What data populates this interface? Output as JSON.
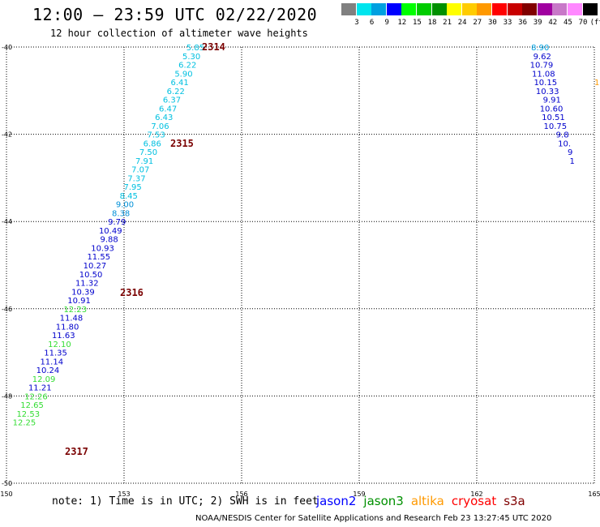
{
  "header": {
    "title": "12:00 – 23:59 UTC 02/22/2020",
    "subtitle": "12 hour collection of altimeter wave heights"
  },
  "legend": {
    "labels": [
      "3",
      "6",
      "9",
      "12",
      "15",
      "18",
      "21",
      "24",
      "27",
      "30",
      "33",
      "36",
      "39",
      "42",
      "45",
      "70",
      "(ft)"
    ],
    "colors": [
      "#808080",
      "#00e5ee",
      "#00a0e0",
      "#0000ff",
      "#00ff00",
      "#00cc00",
      "#009000",
      "#ffff00",
      "#ffcc00",
      "#ff9900",
      "#ff0000",
      "#c80000",
      "#800000",
      "#a000a0",
      "#c878c8",
      "#ff88ff",
      "#000000"
    ]
  },
  "map": {
    "lat_labels": [
      "-40",
      "-42",
      "-44",
      "-46",
      "-48",
      "-50"
    ],
    "lon_labels": [
      "150",
      "153",
      "156",
      "159",
      "162",
      "165"
    ],
    "pass_labels": [
      "2314",
      "2315",
      "2316",
      "2317"
    ],
    "track_main": [
      {
        "lon": 155.05,
        "lat": -40.0,
        "v": "5.85",
        "c": "#00c0e0"
      },
      {
        "lon": 154.95,
        "lat": -40.2,
        "v": "5.30",
        "c": "#00c0e0"
      },
      {
        "lon": 154.85,
        "lat": -40.4,
        "v": "6.22",
        "c": "#00c0e0"
      },
      {
        "lon": 154.75,
        "lat": -40.6,
        "v": "5.90",
        "c": "#00c0e0"
      },
      {
        "lon": 154.65,
        "lat": -40.8,
        "v": "6.41",
        "c": "#00c0e0"
      },
      {
        "lon": 154.55,
        "lat": -41.0,
        "v": "6.22",
        "c": "#00c0e0"
      },
      {
        "lon": 154.45,
        "lat": -41.2,
        "v": "6.37",
        "c": "#00c0e0"
      },
      {
        "lon": 154.35,
        "lat": -41.4,
        "v": "6.47",
        "c": "#00c0e0"
      },
      {
        "lon": 154.25,
        "lat": -41.6,
        "v": "6.43",
        "c": "#00c0e0"
      },
      {
        "lon": 154.15,
        "lat": -41.8,
        "v": "7.06",
        "c": "#00c0e0"
      },
      {
        "lon": 154.05,
        "lat": -42.0,
        "v": "7.53",
        "c": "#00c0e0"
      },
      {
        "lon": 153.95,
        "lat": -42.2,
        "v": "6.86",
        "c": "#00c0e0"
      },
      {
        "lon": 153.85,
        "lat": -42.4,
        "v": "7.50",
        "c": "#00c0e0"
      },
      {
        "lon": 153.75,
        "lat": -42.6,
        "v": "7.91",
        "c": "#00c0e0"
      },
      {
        "lon": 153.65,
        "lat": -42.8,
        "v": "7.07",
        "c": "#00c0e0"
      },
      {
        "lon": 153.55,
        "lat": -43.0,
        "v": "7.37",
        "c": "#00c0e0"
      },
      {
        "lon": 153.45,
        "lat": -43.2,
        "v": "7.95",
        "c": "#00c0e0"
      },
      {
        "lon": 153.35,
        "lat": -43.4,
        "v": "8.45",
        "c": "#00c0e0"
      },
      {
        "lon": 153.25,
        "lat": -43.6,
        "v": "9.00",
        "c": "#0090d8"
      },
      {
        "lon": 153.15,
        "lat": -43.8,
        "v": "8.38",
        "c": "#0090d8"
      },
      {
        "lon": 153.05,
        "lat": -44.0,
        "v": "9.79",
        "c": "#0000cc"
      },
      {
        "lon": 152.95,
        "lat": -44.2,
        "v": "10.49",
        "c": "#0000cc"
      },
      {
        "lon": 152.85,
        "lat": -44.4,
        "v": "9.88",
        "c": "#0000cc"
      },
      {
        "lon": 152.75,
        "lat": -44.6,
        "v": "10.93",
        "c": "#0000cc"
      },
      {
        "lon": 152.65,
        "lat": -44.8,
        "v": "11.55",
        "c": "#0000cc"
      },
      {
        "lon": 152.55,
        "lat": -45.0,
        "v": "10.27",
        "c": "#0000cc"
      },
      {
        "lon": 152.45,
        "lat": -45.2,
        "v": "10.50",
        "c": "#0000cc"
      },
      {
        "lon": 152.35,
        "lat": -45.4,
        "v": "11.32",
        "c": "#0000cc"
      },
      {
        "lon": 152.25,
        "lat": -45.6,
        "v": "10.39",
        "c": "#0000cc"
      },
      {
        "lon": 152.15,
        "lat": -45.8,
        "v": "10.91",
        "c": "#0000cc"
      },
      {
        "lon": 152.05,
        "lat": -46.0,
        "v": "12.23",
        "c": "#33dd33"
      },
      {
        "lon": 151.95,
        "lat": -46.2,
        "v": "11.48",
        "c": "#0000cc"
      },
      {
        "lon": 151.85,
        "lat": -46.4,
        "v": "11.80",
        "c": "#0000cc"
      },
      {
        "lon": 151.75,
        "lat": -46.6,
        "v": "11.63",
        "c": "#0000cc"
      },
      {
        "lon": 151.65,
        "lat": -46.8,
        "v": "12.10",
        "c": "#33dd33"
      },
      {
        "lon": 151.55,
        "lat": -47.0,
        "v": "11.35",
        "c": "#0000cc"
      },
      {
        "lon": 151.45,
        "lat": -47.2,
        "v": "11.14",
        "c": "#0000cc"
      },
      {
        "lon": 151.35,
        "lat": -47.4,
        "v": "10.24",
        "c": "#0000cc"
      },
      {
        "lon": 151.25,
        "lat": -47.6,
        "v": "12.09",
        "c": "#33dd33"
      },
      {
        "lon": 151.15,
        "lat": -47.8,
        "v": "11.21",
        "c": "#0000cc"
      },
      {
        "lon": 151.05,
        "lat": -48.0,
        "v": "12.26",
        "c": "#33dd33"
      },
      {
        "lon": 150.95,
        "lat": -48.2,
        "v": "12.65",
        "c": "#33dd33"
      },
      {
        "lon": 150.85,
        "lat": -48.4,
        "v": "12.53",
        "c": "#33dd33"
      },
      {
        "lon": 150.75,
        "lat": -48.6,
        "v": "12.25",
        "c": "#33dd33"
      }
    ],
    "track_east": [
      {
        "lon": 163.85,
        "lat": -40.0,
        "v": "8.90",
        "c": "#00a0e0"
      },
      {
        "lon": 163.9,
        "lat": -40.2,
        "v": "9.62",
        "c": "#0000cc"
      },
      {
        "lon": 163.95,
        "lat": -40.4,
        "v": "10.79",
        "c": "#0000cc"
      },
      {
        "lon": 164.0,
        "lat": -40.6,
        "v": "11.08",
        "c": "#0000cc"
      },
      {
        "lon": 164.05,
        "lat": -40.8,
        "v": "10.15",
        "c": "#0000cc"
      },
      {
        "lon": 164.1,
        "lat": -41.0,
        "v": "10.33",
        "c": "#0000cc"
      },
      {
        "lon": 164.15,
        "lat": -41.2,
        "v": "9.91",
        "c": "#0000cc"
      },
      {
        "lon": 164.2,
        "lat": -41.4,
        "v": "10.60",
        "c": "#0000cc"
      },
      {
        "lon": 164.25,
        "lat": -41.6,
        "v": "10.51",
        "c": "#0000cc"
      },
      {
        "lon": 164.3,
        "lat": -41.8,
        "v": "10.75",
        "c": "#0000cc"
      },
      {
        "lon": 164.35,
        "lat": -42.0,
        "v": "9.8",
        "c": "#0000cc"
      },
      {
        "lon": 164.4,
        "lat": -42.2,
        "v": "10.",
        "c": "#0000cc"
      },
      {
        "lon": 164.45,
        "lat": -42.4,
        "v": "9",
        "c": "#0000cc"
      },
      {
        "lon": 164.5,
        "lat": -42.6,
        "v": "1",
        "c": "#0000cc"
      }
    ],
    "edge_fragment": {
      "lon": 165.0,
      "lat": -40.8,
      "v": "1",
      "c": "#ff9900"
    }
  },
  "footer": {
    "note": "note:  1) Time is in UTC;  2) SWH is in feet",
    "satellites": [
      {
        "name": "jason2",
        "color": "#0000ff"
      },
      {
        "name": "jason3",
        "color": "#009000"
      },
      {
        "name": "altika",
        "color": "#ff9900"
      },
      {
        "name": "cryosat",
        "color": "#ff0000"
      },
      {
        "name": "s3a",
        "color": "#800000"
      }
    ],
    "credit": "NOAA/NESDIS Center for Satellite Applications and Research     Feb 23 13:27:45 UTC 2020"
  }
}
